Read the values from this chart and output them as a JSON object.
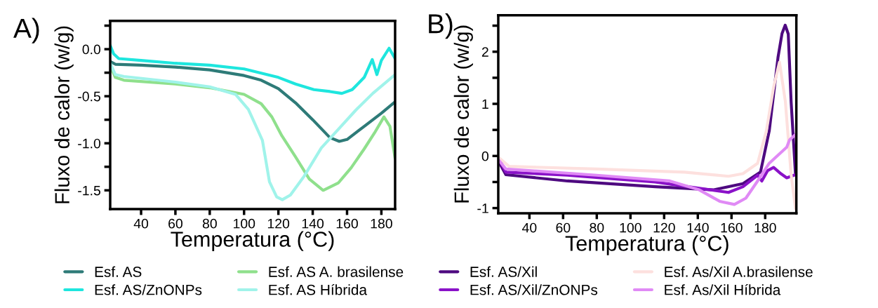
{
  "chart_data": [
    {
      "type": "line",
      "title": "A)",
      "xlabel": "Temperatura (°C)",
      "ylabel": "Fluxo de calor (w/g)",
      "xlim": [
        22,
        188
      ],
      "xticks": [
        40,
        60,
        80,
        100,
        120,
        140,
        160,
        180
      ],
      "ylim": [
        -1.7,
        0.3
      ],
      "yticks": [
        {
          "value": -1.5,
          "label": "-1.5"
        },
        {
          "value": -1.25,
          "label": null
        },
        {
          "value": -1.0,
          "label": "-1.0"
        },
        {
          "value": -0.75,
          "label": null
        },
        {
          "value": -0.5,
          "label": "-0.5"
        },
        {
          "value": -0.25,
          "label": null
        },
        {
          "value": 0.0,
          "label": "0.0"
        },
        {
          "value": 0.25,
          "label": null
        }
      ],
      "grid": false,
      "legend": "bottom",
      "line_style": "solid",
      "marker": "none",
      "series": [
        {
          "name": "Esf. AS",
          "color": "#2e7b78",
          "x": [
            22,
            25,
            40,
            60,
            80,
            100,
            110,
            120,
            130,
            140,
            150,
            155.5,
            160,
            170,
            180,
            188
          ],
          "values": [
            -0.13,
            -0.16,
            -0.17,
            -0.19,
            -0.22,
            -0.28,
            -0.33,
            -0.42,
            -0.57,
            -0.75,
            -0.94,
            -0.98,
            -0.96,
            -0.82,
            -0.68,
            -0.56
          ]
        },
        {
          "name": "Esf. AS/ZnONPs",
          "color": "#1ee6de",
          "x": [
            22,
            24,
            27,
            40,
            60,
            80,
            100,
            120,
            130,
            140.7,
            150,
            157,
            163,
            170,
            174.7,
            177.4,
            180,
            184.5,
            188
          ],
          "values": [
            0.04,
            -0.05,
            -0.1,
            -0.12,
            -0.15,
            -0.17,
            -0.21,
            -0.3,
            -0.37,
            -0.43,
            -0.45,
            -0.47,
            -0.43,
            -0.3,
            -0.11,
            -0.27,
            -0.12,
            0.01,
            -0.1
          ]
        },
        {
          "name": "Esf. AS A. brasilense",
          "color": "#8fe08c",
          "x": [
            22,
            25,
            30,
            60,
            80,
            100,
            110,
            116.2,
            122,
            129.8,
            138,
            146.1,
            155,
            162.4,
            170,
            176,
            181.5,
            185,
            188
          ],
          "values": [
            -0.17,
            -0.3,
            -0.33,
            -0.37,
            -0.41,
            -0.48,
            -0.58,
            -0.72,
            -0.92,
            -1.14,
            -1.38,
            -1.5,
            -1.42,
            -1.26,
            -1.06,
            -0.89,
            -0.72,
            -0.82,
            -1.16
          ]
        },
        {
          "name": "Esf. AS Híbrida",
          "color": "#a0f3ea",
          "x": [
            22,
            25,
            30,
            60,
            80,
            95,
            102.5,
            106,
            110.7,
            114.8,
            119,
            122.3,
            127,
            135,
            145,
            155,
            165,
            175,
            188
          ],
          "values": [
            -0.15,
            -0.27,
            -0.29,
            -0.35,
            -0.4,
            -0.48,
            -0.64,
            -0.78,
            -0.97,
            -1.41,
            -1.57,
            -1.6,
            -1.55,
            -1.35,
            -1.05,
            -0.85,
            -0.65,
            -0.47,
            -0.27
          ]
        }
      ]
    },
    {
      "type": "line",
      "title": "B)",
      "xlabel": "Temperatura (°C)",
      "ylabel": "Fluxo de calor (w/g)",
      "xlim": [
        21.5,
        198.5
      ],
      "xticks": [
        40,
        60,
        80,
        100,
        120,
        140,
        160,
        180
      ],
      "ylim": [
        -1.1,
        2.7
      ],
      "yticks": [
        -1,
        {
          "value": -0.5,
          "label": null
        },
        0,
        {
          "value": 0.5,
          "label": null
        },
        1,
        {
          "value": 1.5,
          "label": null
        },
        2,
        {
          "value": 2.5,
          "label": null
        }
      ],
      "grid": false,
      "legend": "bottom",
      "line_style": "solid",
      "marker": "none",
      "series": [
        {
          "name": "Esf. AS/Xil",
          "color": "#4e0a80",
          "x": [
            21.8,
            26,
            62.6,
            114.7,
            149.5,
            166.8,
            177.2,
            182.4,
            187.6,
            190,
            191.9,
            193.7,
            195.4,
            198
          ],
          "values": [
            -0.11,
            -0.36,
            -0.48,
            -0.59,
            -0.65,
            -0.53,
            -0.31,
            0.48,
            1.89,
            2.35,
            2.51,
            2.34,
            1.04,
            -0.36
          ]
        },
        {
          "name": "Esf. AS/Xil/ZnONPs",
          "color": "#8a12c8",
          "x": [
            21.8,
            26,
            62.6,
            114.7,
            140.8,
            158.2,
            166.8,
            175.5,
            178,
            181.5,
            185,
            189.3,
            192.8,
            198
          ],
          "values": [
            -0.05,
            -0.31,
            -0.37,
            -0.5,
            -0.62,
            -0.7,
            -0.59,
            -0.37,
            -0.48,
            -0.28,
            -0.22,
            -0.34,
            -0.42,
            -0.36
          ]
        },
        {
          "name": "Esf. As/Xil A.brasilense",
          "color": "#fde0de",
          "x": [
            21.8,
            27.9,
            79.9,
            132,
            158.2,
            166.8,
            175.5,
            180.7,
            185,
            188.5,
            192,
            195.4,
            198
          ],
          "values": [
            -0.03,
            -0.2,
            -0.25,
            -0.31,
            -0.39,
            -0.34,
            -0.14,
            0.48,
            1.32,
            1.8,
            1.04,
            -0.36,
            -1.01
          ]
        },
        {
          "name": "Esf. As/Xil Híbrida",
          "color": "#e08af5",
          "x": [
            21.8,
            26,
            79.9,
            123.3,
            140.8,
            153,
            161.7,
            168.5,
            175.5,
            182.4,
            192.8,
            194.5,
            198.3
          ],
          "values": [
            -0.08,
            -0.25,
            -0.37,
            -0.48,
            -0.65,
            -0.87,
            -0.93,
            -0.81,
            -0.48,
            -0.14,
            0.17,
            0.31,
            0.42
          ]
        }
      ]
    }
  ]
}
